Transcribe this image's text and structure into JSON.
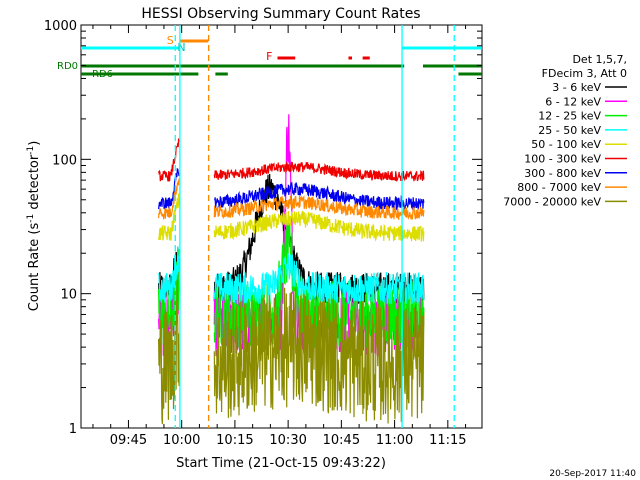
{
  "chart_data": {
    "type": "line",
    "title": "HESSI Observing Summary Count Rates",
    "xlabel": "Start Time (21-Oct-15 09:43:22)",
    "ylabel_main": "Count Rate (s",
    "ylabel_sup1": "-1",
    "ylabel_mid": " detector",
    "ylabel_sup2": "-1",
    "ylabel_end": ")",
    "yscale": "log",
    "ylim": [
      1,
      1000
    ],
    "xlim_minutes": [
      -13.37,
      99.63
    ],
    "x_ticks": [
      {
        "label": "09:45",
        "min": 0
      },
      {
        "label": "10:00",
        "min": 15
      },
      {
        "label": "10:15",
        "min": 30
      },
      {
        "label": "10:30",
        "min": 45
      },
      {
        "label": "10:45",
        "min": 60
      },
      {
        "label": "11:00",
        "min": 75
      },
      {
        "label": "11:15",
        "min": 90
      }
    ],
    "y_ticks": [
      {
        "label": "1",
        "v": 1
      },
      {
        "label": "10",
        "v": 10
      },
      {
        "label": "100",
        "v": 100
      },
      {
        "label": "1000",
        "v": 1000
      }
    ],
    "legend": {
      "header1": "Det 1,5,7,",
      "header2": "FDecim 3, Att 0",
      "entries": [
        {
          "label": "3 - 6 keV",
          "color": "#000000"
        },
        {
          "label": "6 - 12 keV",
          "color": "#ff00ff"
        },
        {
          "label": "12 - 25 keV",
          "color": "#00ee00"
        },
        {
          "label": "25 - 50 keV",
          "color": "#00ffff"
        },
        {
          "label": "50 - 100 keV",
          "color": "#dddd00"
        },
        {
          "label": "100 - 300 keV",
          "color": "#ee0000"
        },
        {
          "label": "300 - 800 keV",
          "color": "#0000ee"
        },
        {
          "label": "800 - 7000 keV",
          "color": "#ff8800"
        },
        {
          "label": "7000 - 20000 keV",
          "color": "#8b8b00"
        }
      ]
    },
    "flags": {
      "s_label": "S",
      "n_label": "N",
      "f_label": "F",
      "rd0_label": "RD0",
      "rd6_label": "RD6",
      "saa": [
        [
          -13.4,
          14.5
        ],
        [
          77.1,
          99.6
        ]
      ],
      "attenuator_s": [
        14.5,
        22.5
      ],
      "flare_f": [
        [
          42,
          47
        ],
        [
          62,
          63
        ],
        [
          66,
          68
        ]
      ],
      "rd0": [
        [
          -13.4,
          77.7
        ],
        [
          83,
          99.6
        ]
      ],
      "rd0_gaps": [
        [
          19.7,
          20.4
        ]
      ],
      "rd6": [
        [
          -13.4,
          19.7
        ],
        [
          24.5,
          28
        ],
        [
          93,
          99.6
        ]
      ]
    },
    "vlines": [
      {
        "min": 13.2,
        "color": "#00ffff",
        "style": "dashed"
      },
      {
        "min": 14.5,
        "color": "#00ffff",
        "style": "solid"
      },
      {
        "min": 22.6,
        "color": "#ff8800",
        "style": "dashed"
      },
      {
        "min": 77.1,
        "color": "#00ffff",
        "style": "solid"
      },
      {
        "min": 91.8,
        "color": "#00ffff",
        "style": "dashed"
      }
    ],
    "data_segments": [
      [
        8.5,
        14.3
      ],
      [
        24.2,
        83.3
      ]
    ],
    "series_approx": [
      {
        "name": "3 - 6 keV",
        "color": "#000000",
        "base": 11,
        "peak_at": 40,
        "peak": 60
      },
      {
        "name": "6 - 12 keV",
        "color": "#ff00ff",
        "base": 6,
        "peak_at": 45,
        "peak": 160
      },
      {
        "name": "12 - 25 keV",
        "color": "#00ee00",
        "base": 7,
        "peak_at": 45,
        "peak": 20
      },
      {
        "name": "25 - 50 keV",
        "color": "#00ffff",
        "base": 11,
        "peak_at": 45,
        "peak": 16
      },
      {
        "name": "50 - 100 keV",
        "color": "#dddd00",
        "base": 28,
        "peak_at": 47,
        "peak": 36
      },
      {
        "name": "100 - 300 keV",
        "color": "#ee0000",
        "base": 75,
        "peak_at": 47,
        "peak": 88
      },
      {
        "name": "300 - 800 keV",
        "color": "#0000ee",
        "base": 47,
        "peak_at": 47,
        "peak": 60
      },
      {
        "name": "800 - 7000 keV",
        "color": "#ff8800",
        "base": 40,
        "peak_at": 47,
        "peak": 48
      },
      {
        "name": "7000 - 20000 keV",
        "color": "#8b8b00",
        "base": 3,
        "peak_at": 47,
        "peak": 4
      }
    ]
  },
  "footer": {
    "date_stamp": "20-Sep-2017 11:40"
  }
}
